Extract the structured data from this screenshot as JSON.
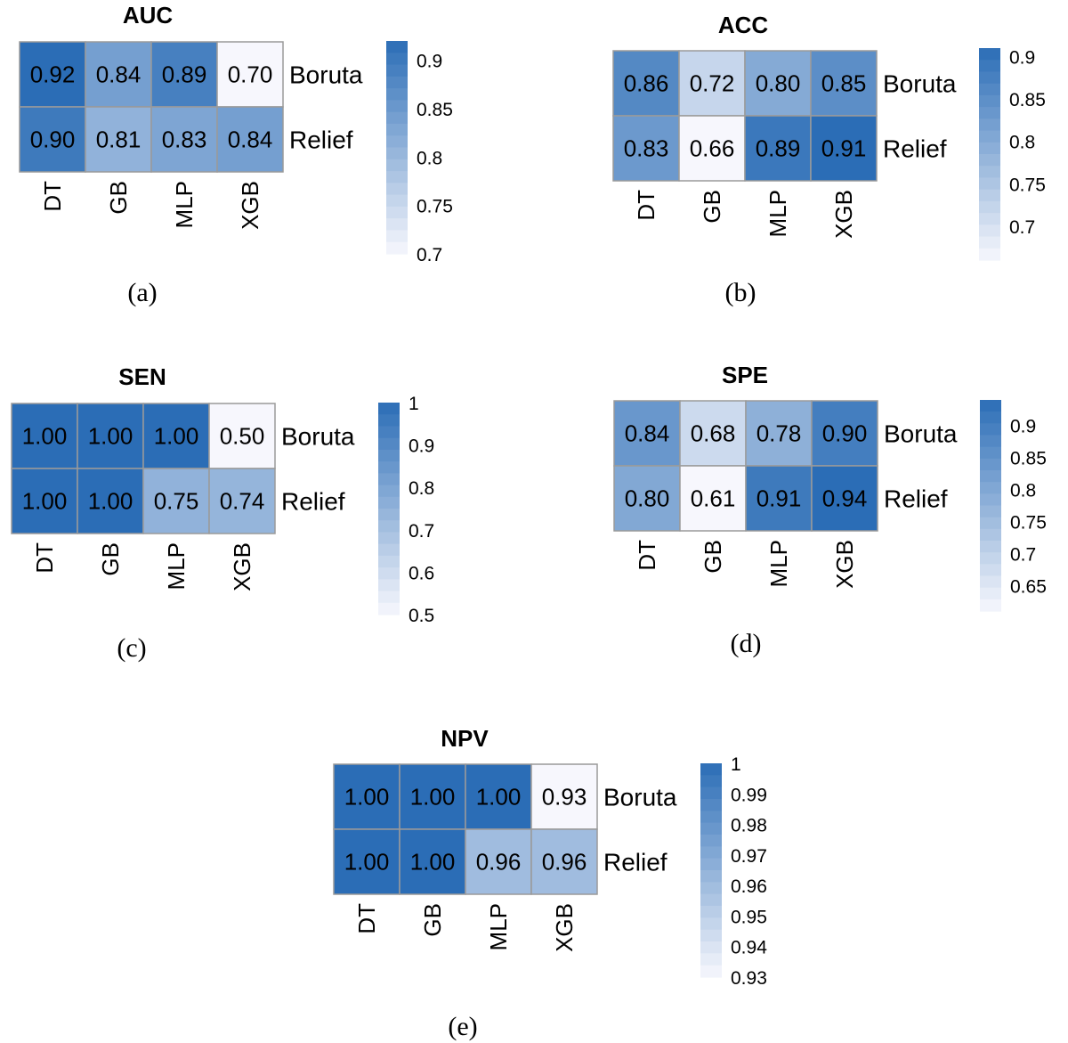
{
  "chart_data": [
    {
      "type": "heatmap",
      "title": "AUC",
      "panel_label": "(a)",
      "rows": [
        "Boruta",
        "Relief"
      ],
      "columns": [
        "DT",
        "GB",
        "MLP",
        "XGB"
      ],
      "values": [
        [
          0.92,
          0.84,
          0.89,
          0.7
        ],
        [
          0.9,
          0.81,
          0.83,
          0.84
        ]
      ],
      "value_labels": [
        [
          "0.92",
          "0.84",
          "0.89",
          "0.70"
        ],
        [
          "0.90",
          "0.81",
          "0.83",
          "0.84"
        ]
      ],
      "color_range": [
        0.7,
        0.92
      ],
      "legend_ticks": [
        "0.9",
        "0.85",
        "0.8",
        "0.75",
        "0.7"
      ],
      "colors": {
        "low": "#f7f7fd",
        "high": "#2b6db6"
      }
    },
    {
      "type": "heatmap",
      "title": "ACC",
      "panel_label": "(b)",
      "rows": [
        "Boruta",
        "Relief"
      ],
      "columns": [
        "DT",
        "GB",
        "MLP",
        "XGB"
      ],
      "values": [
        [
          0.86,
          0.72,
          0.8,
          0.85
        ],
        [
          0.83,
          0.66,
          0.89,
          0.91
        ]
      ],
      "value_labels": [
        [
          "0.86",
          "0.72",
          "0.80",
          "0.85"
        ],
        [
          "0.83",
          "0.66",
          "0.89",
          "0.91"
        ]
      ],
      "color_range": [
        0.66,
        0.91
      ],
      "legend_ticks": [
        "0.9",
        "0.85",
        "0.8",
        "0.75",
        "0.7"
      ],
      "colors": {
        "low": "#f7f7fd",
        "high": "#2b6db6"
      }
    },
    {
      "type": "heatmap",
      "title": "SEN",
      "panel_label": "(c)",
      "rows": [
        "Boruta",
        "Relief"
      ],
      "columns": [
        "DT",
        "GB",
        "MLP",
        "XGB"
      ],
      "values": [
        [
          1.0,
          1.0,
          1.0,
          0.5
        ],
        [
          1.0,
          1.0,
          0.75,
          0.74
        ]
      ],
      "value_labels": [
        [
          "1.00",
          "1.00",
          "1.00",
          "0.50"
        ],
        [
          "1.00",
          "1.00",
          "0.75",
          "0.74"
        ]
      ],
      "color_range": [
        0.5,
        1.0
      ],
      "legend_ticks": [
        "1",
        "0.9",
        "0.8",
        "0.7",
        "0.6",
        "0.5"
      ],
      "colors": {
        "low": "#f7f7fd",
        "high": "#2b6db6"
      }
    },
    {
      "type": "heatmap",
      "title": "SPE",
      "panel_label": "(d)",
      "rows": [
        "Boruta",
        "Relief"
      ],
      "columns": [
        "DT",
        "GB",
        "MLP",
        "XGB"
      ],
      "values": [
        [
          0.84,
          0.68,
          0.78,
          0.9
        ],
        [
          0.8,
          0.61,
          0.91,
          0.94
        ]
      ],
      "value_labels": [
        [
          "0.84",
          "0.68",
          "0.78",
          "0.90"
        ],
        [
          "0.80",
          "0.61",
          "0.91",
          "0.94"
        ]
      ],
      "color_range": [
        0.61,
        0.94
      ],
      "legend_ticks": [
        "0.9",
        "0.85",
        "0.8",
        "0.75",
        "0.7",
        "0.65"
      ],
      "colors": {
        "low": "#f7f7fd",
        "high": "#2b6db6"
      }
    },
    {
      "type": "heatmap",
      "title": "NPV",
      "panel_label": "(e)",
      "rows": [
        "Boruta",
        "Relief"
      ],
      "columns": [
        "DT",
        "GB",
        "MLP",
        "XGB"
      ],
      "values": [
        [
          1.0,
          1.0,
          1.0,
          0.93
        ],
        [
          1.0,
          1.0,
          0.96,
          0.96
        ]
      ],
      "value_labels": [
        [
          "1.00",
          "1.00",
          "1.00",
          "0.93"
        ],
        [
          "1.00",
          "1.00",
          "0.96",
          "0.96"
        ]
      ],
      "color_range": [
        0.93,
        1.0
      ],
      "legend_ticks": [
        "1",
        "0.99",
        "0.98",
        "0.97",
        "0.96",
        "0.95",
        "0.94",
        "0.93"
      ],
      "colors": {
        "low": "#f7f7fd",
        "high": "#2b6db6"
      }
    }
  ]
}
